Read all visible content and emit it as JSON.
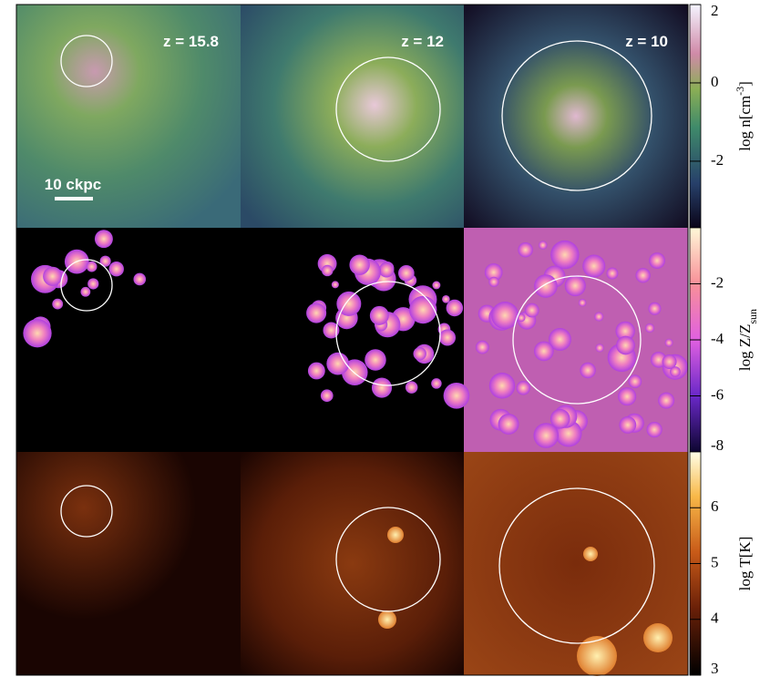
{
  "panels": {
    "redshifts": [
      "z = 15.8",
      "z = 12",
      "z = 10"
    ],
    "scale_bar": "10 ckpc"
  },
  "colorbars": [
    {
      "label": "log n[cm",
      "label_sup": "-3",
      "label_tail": "]",
      "lim": [
        -3.7,
        2
      ],
      "ticks": [
        -2,
        0,
        2
      ]
    },
    {
      "label": "log Z/Z",
      "label_sub": "sun",
      "lim": [
        -8,
        0
      ],
      "ticks": [
        -8,
        -6,
        -4,
        -2
      ]
    },
    {
      "label": "log T[K]",
      "lim": [
        3,
        7
      ],
      "ticks": [
        3,
        4,
        5,
        6
      ]
    }
  ]
}
